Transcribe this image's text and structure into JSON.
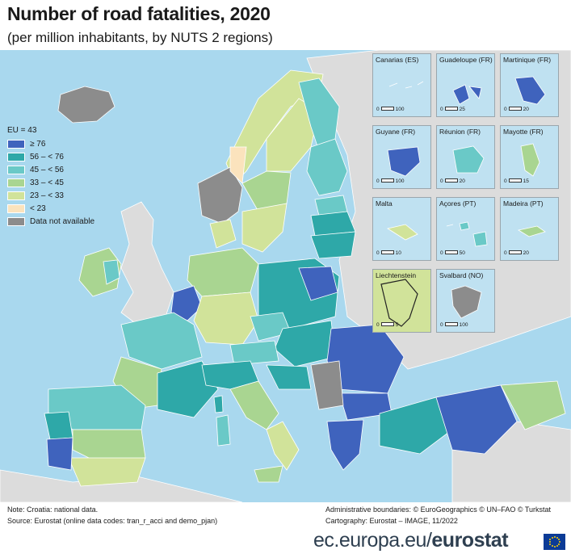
{
  "title": "Number of road fatalities, 2020",
  "subtitle": "(per million inhabitants, by NUTS 2 regions)",
  "legend": {
    "header": "EU = 43",
    "classes": [
      {
        "label": "≥ 76",
        "color": "#3f63bd"
      },
      {
        "label": "56 – < 76",
        "color": "#2ea8a8"
      },
      {
        "label": "45 – < 56",
        "color": "#6ac9c7"
      },
      {
        "label": "33 – < 45",
        "color": "#a9d591"
      },
      {
        "label": "23 – < 33",
        "color": "#d1e39a"
      },
      {
        "label": "< 23",
        "color": "#fbe3bd"
      },
      {
        "label": "Data not available",
        "color": "#8c8c8c"
      }
    ]
  },
  "insets": [
    {
      "name": "Canarias (ES)",
      "scale": [
        "0",
        "100"
      ],
      "color": "#6ac9c7"
    },
    {
      "name": "Guadeloupe (FR)",
      "scale": [
        "0",
        "25"
      ],
      "color": "#3f63bd"
    },
    {
      "name": "Martinique (FR)",
      "scale": [
        "0",
        "20"
      ],
      "color": "#3f63bd"
    },
    {
      "name": "Guyane (FR)",
      "scale": [
        "0",
        "100"
      ],
      "color": "#3f63bd"
    },
    {
      "name": "Réunion (FR)",
      "scale": [
        "0",
        "20"
      ],
      "color": "#6ac9c7"
    },
    {
      "name": "Mayotte (FR)",
      "scale": [
        "0",
        "15"
      ],
      "color": "#a9d591"
    },
    {
      "name": "Malta",
      "scale": [
        "0",
        "10"
      ],
      "color": "#d1e39a"
    },
    {
      "name": "Açores (PT)",
      "scale": [
        "0",
        "50"
      ],
      "color": "#6ac9c7"
    },
    {
      "name": "Madeira (PT)",
      "scale": [
        "0",
        "20"
      ],
      "color": "#a9d591"
    },
    {
      "name": "Liechtenstein",
      "scale": [
        "0",
        "5"
      ],
      "color": "#d1e39a"
    },
    {
      "name": "Svalbard (NO)",
      "scale": [
        "0",
        "100"
      ],
      "color": "#8c8c8c"
    }
  ],
  "note": "Note: Croatia: national data.",
  "source": "Source: Eurostat (online data codes: tran_r_acci and demo_pjan)",
  "admin_boundaries": "Administrative boundaries: © EuroGeographics © UN–FAO © Turkstat",
  "cartography": "Cartography: Eurostat – IMAGE, 11/2022",
  "footer": {
    "domain": "ec.europa.eu/",
    "brand": "eurostat"
  }
}
